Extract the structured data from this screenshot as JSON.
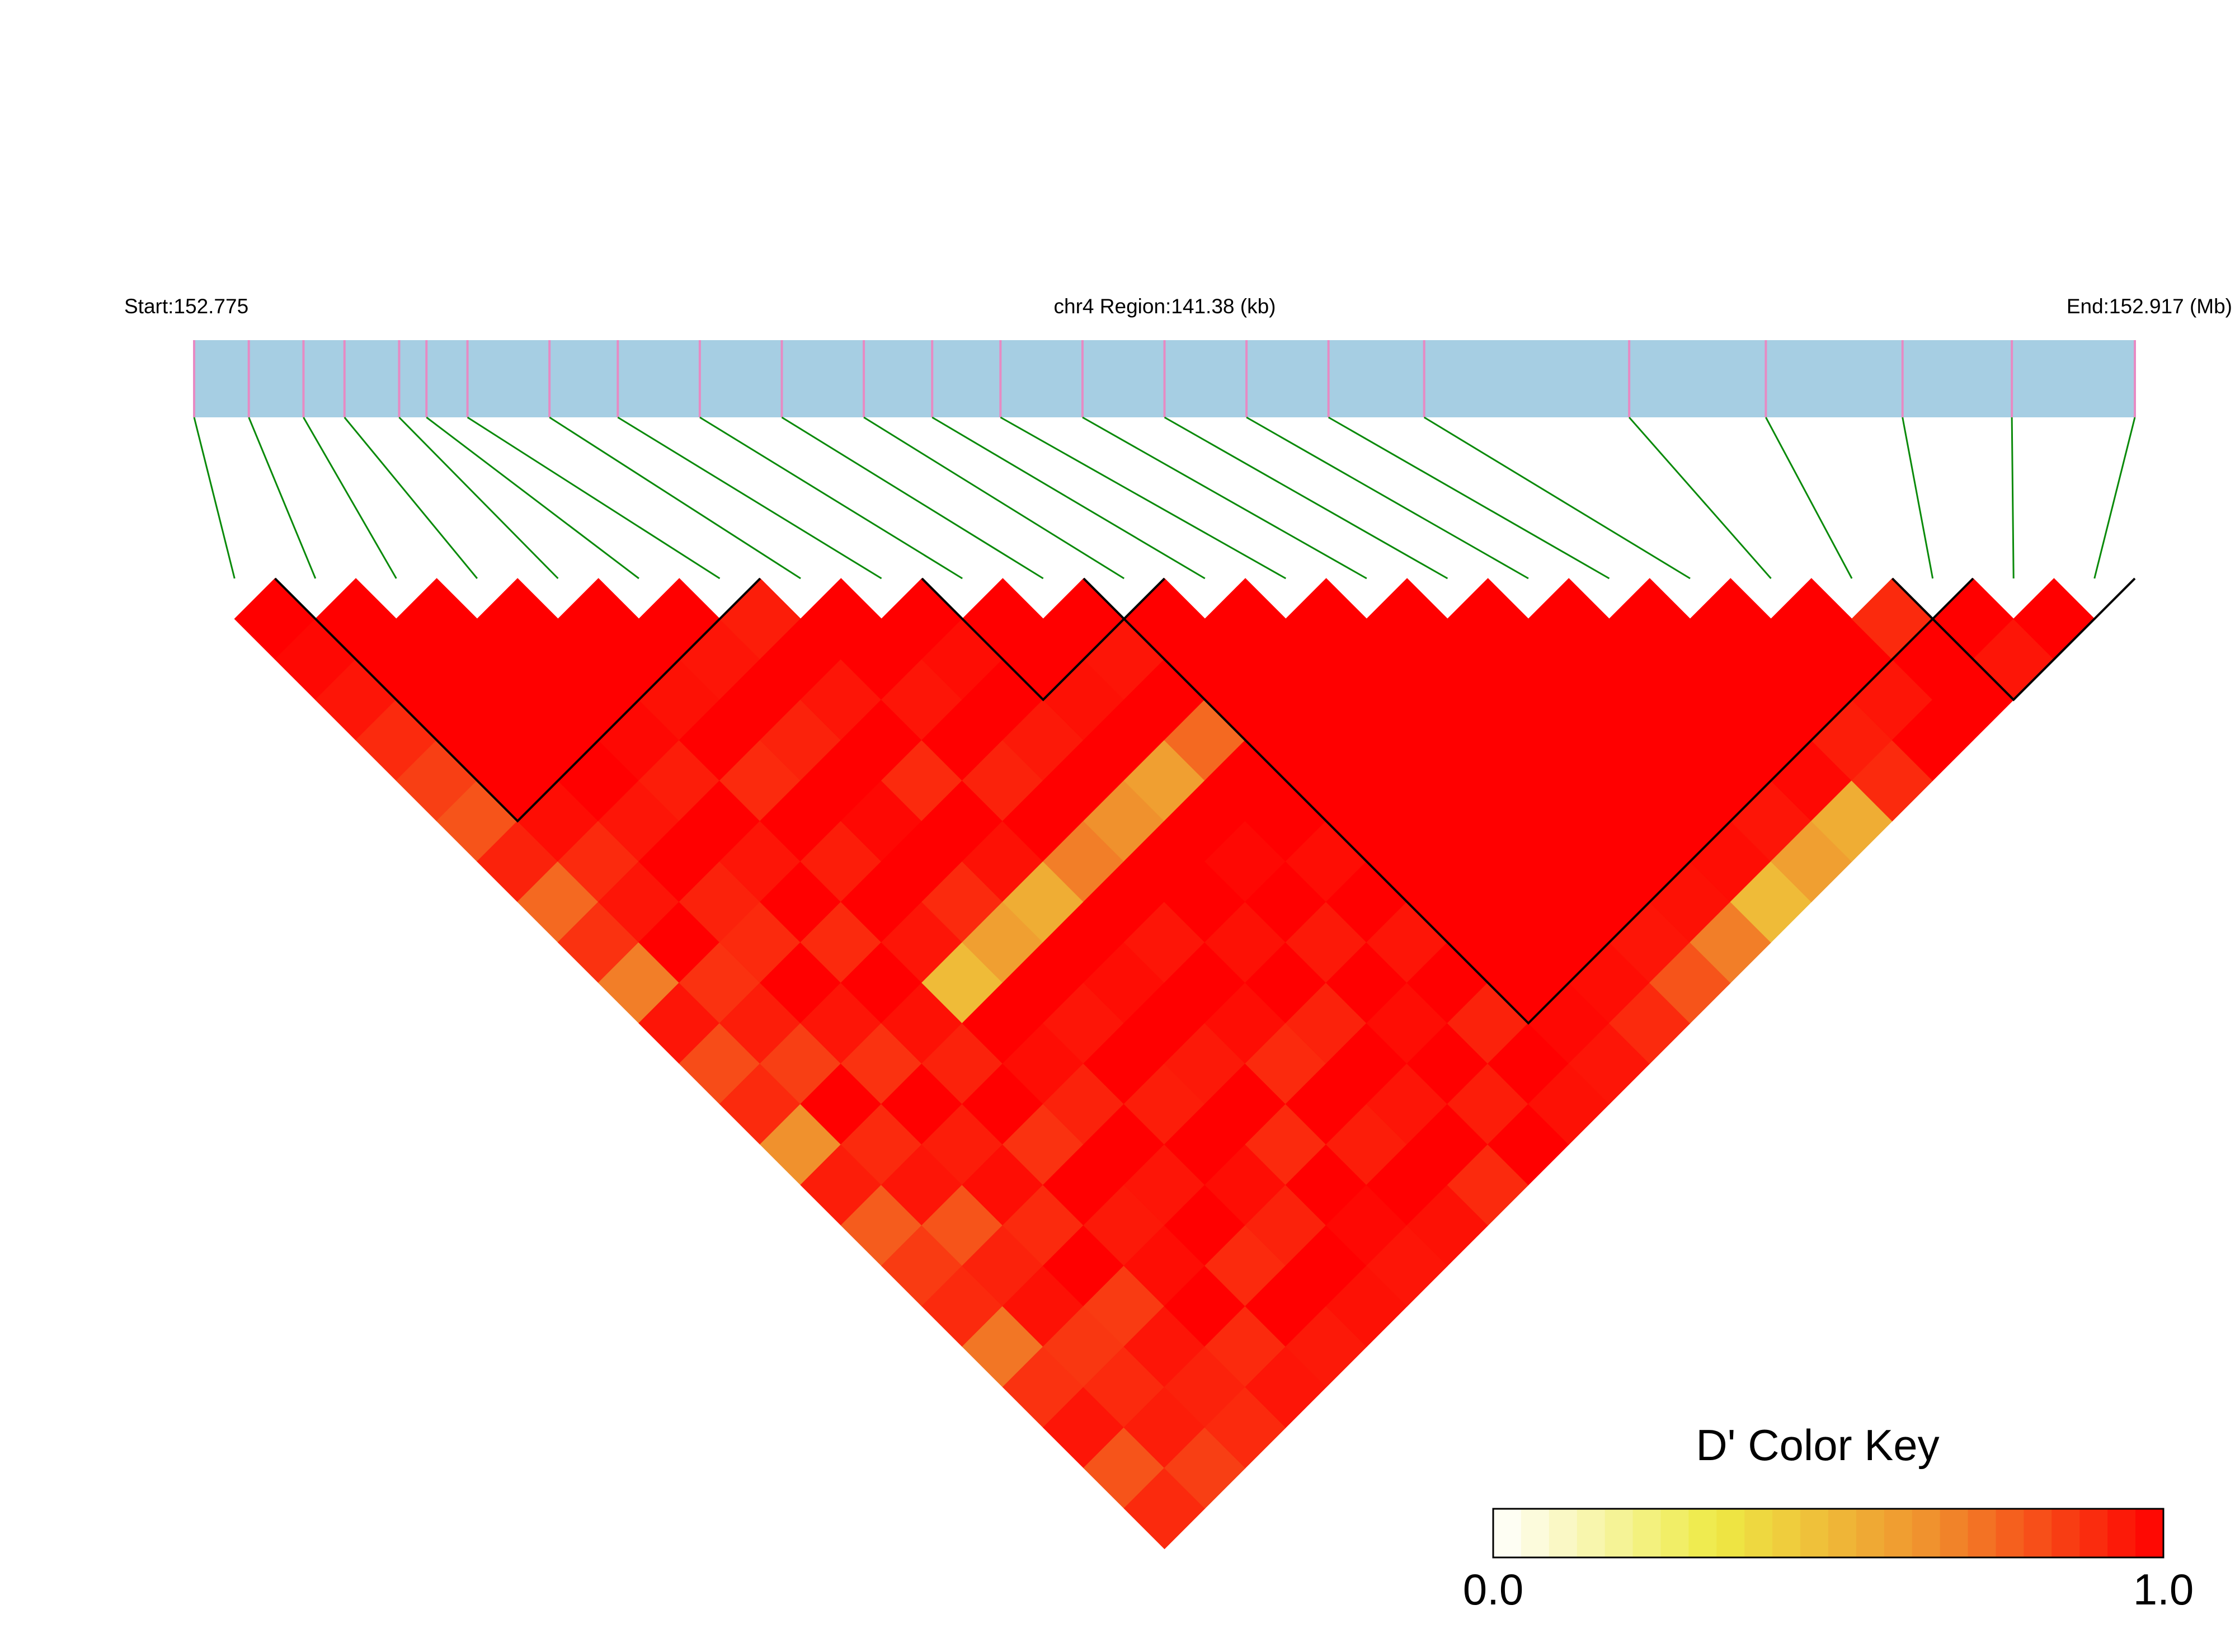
{
  "chart_data": {
    "type": "ld-heatmap",
    "start_label": "Start:152.775",
    "region_label": "chr4 Region:141.38 (kb)",
    "end_label": "End:152.917 (Mb)",
    "xlim": [
      152.775,
      152.917
    ],
    "positions": [
      152.775,
      152.779,
      152.783,
      152.786,
      152.79,
      152.792,
      152.795,
      152.801,
      152.806,
      152.812,
      152.818,
      152.824,
      152.829,
      152.834,
      152.84,
      152.846,
      152.852,
      152.858,
      152.865,
      152.88,
      152.89,
      152.9,
      152.908,
      152.917
    ],
    "dprime": [
      [
        1,
        0.98,
        0.95,
        0.9,
        0.85,
        0.8,
        0.92,
        0.75,
        0.88,
        0.7,
        0.95,
        0.82,
        0.9,
        0.65,
        0.93,
        0.78,
        0.86,
        0.9,
        0.72,
        0.88,
        0.95,
        0.8,
        0.9
      ],
      [
        1,
        1,
        1,
        1,
        1,
        0.97,
        0.9,
        0.95,
        1,
        0.88,
        0.93,
        0.85,
        1,
        0.9,
        0.95,
        0.8,
        0.92,
        0.96,
        0.87,
        0.9,
        0.93,
        0.85
      ],
      [
        1,
        1,
        1,
        1,
        1,
        0.95,
        1,
        0.92,
        0.9,
        1,
        0.95,
        0.88,
        1,
        0.93,
        0.97,
        0.9,
        1,
        0.86,
        0.95,
        0.92,
        0.9
      ],
      [
        1,
        1,
        1,
        0.98,
        0.93,
        1,
        0.95,
        1,
        0.9,
        1,
        0.96,
        0.92,
        1,
        0.88,
        1,
        0.94,
        0.97,
        1,
        0.9,
        0.95
      ],
      [
        1,
        1,
        0.96,
        1,
        0.9,
        1,
        0.93,
        1,
        0.95,
        0.5,
        1,
        0.97,
        0.92,
        1,
        0.95,
        1,
        0.9,
        1,
        0.94
      ],
      [
        1,
        0.95,
        1,
        0.92,
        1,
        0.98,
        1,
        0.9,
        0.6,
        1,
        0.95,
        1,
        0.93,
        1,
        0.97,
        0.92,
        1,
        0.96
      ],
      [
        0.93,
        1,
        0.95,
        1,
        0.9,
        1,
        0.96,
        0.55,
        1,
        0.97,
        1,
        0.94,
        1,
        0.9,
        1,
        0.98,
        0.95
      ],
      [
        1,
        1,
        0.95,
        1,
        0.92,
        1,
        0.7,
        1,
        0.95,
        1,
        0.97,
        0.9,
        1,
        0.93,
        1,
        0.96
      ],
      [
        1,
        0.97,
        1,
        0.94,
        1,
        0.65,
        1,
        1,
        0.96,
        1,
        0.92,
        1,
        0.95,
        1,
        0.9
      ],
      [
        1,
        1,
        0.96,
        1,
        0.6,
        1,
        0.98,
        1,
        0.94,
        1,
        0.97,
        1,
        0.93,
        1
      ],
      [
        1,
        0.95,
        1,
        0.75,
        1,
        1,
        0.97,
        1,
        0.95,
        1,
        0.92,
        1,
        0.96
      ],
      [
        1,
        1,
        1,
        1,
        1,
        1,
        1,
        1,
        1,
        1,
        0.98,
        0.95
      ],
      [
        1,
        1,
        1,
        1,
        1,
        1,
        1,
        1,
        1,
        0.97,
        0.9
      ],
      [
        1,
        1,
        1,
        1,
        1,
        1,
        1,
        1,
        0.95,
        0.8
      ],
      [
        1,
        1,
        1,
        1,
        1,
        1,
        1,
        0.96,
        0.7
      ],
      [
        1,
        1,
        1,
        1,
        1,
        1,
        0.97,
        0.5
      ],
      [
        1,
        1,
        1,
        1,
        1,
        0.95,
        0.6
      ],
      [
        1,
        1,
        1,
        1,
        0.98,
        0.55
      ],
      [
        1,
        1,
        1,
        0.93,
        0.9
      ],
      [
        1,
        1,
        0.95,
        1
      ],
      [
        0.9,
        1,
        1
      ],
      [
        1,
        0.95
      ],
      [
        1
      ]
    ],
    "blocks": [
      [
        1,
        6
      ],
      [
        9,
        11
      ],
      [
        11,
        21
      ],
      [
        21,
        23
      ]
    ],
    "colormap": [
      "#ffffff",
      "#eeea44",
      "#f08c2c",
      "#ff0000"
    ],
    "colorbar": {
      "title": "D' Color Key",
      "lim": [
        0,
        1
      ],
      "ticks": [
        {
          "value": 0,
          "label": "0.0"
        },
        {
          "value": 1,
          "label": "1.0"
        }
      ]
    },
    "bar_color": "#a6cee3",
    "snp_tick_color": "#e78ac3",
    "link_color": "#0a8a0a"
  }
}
